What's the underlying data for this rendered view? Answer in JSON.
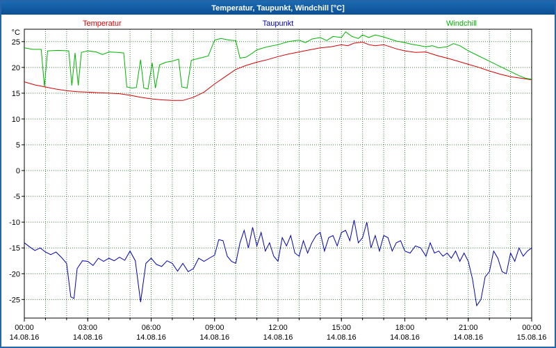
{
  "window": {
    "title": "Temperatur, Taupunkt, Windchill [°C]"
  },
  "chart_data": {
    "type": "line",
    "title": "Temperatur, Taupunkt, Windchill [°C]",
    "ylabel": "°C",
    "xlim": [
      0,
      24
    ],
    "ylim": [
      -28.6,
      27.4
    ],
    "y_ticks": [
      25,
      20,
      15,
      10,
      5,
      0,
      -5,
      -10,
      -15,
      -20,
      -25
    ],
    "x_ticks_hours": [
      0,
      3,
      6,
      9,
      12,
      15,
      18,
      21,
      24
    ],
    "x_tick_times": [
      "00:00",
      "03:00",
      "06:00",
      "09:00",
      "12:00",
      "15:00",
      "18:00",
      "21:00",
      "00:00"
    ],
    "x_tick_dates": [
      "14.08.16",
      "14.08.16",
      "14.08.16",
      "14.08.16",
      "14.08.16",
      "14.08.16",
      "14.08.16",
      "14.08.16",
      "15.08.16"
    ],
    "grid": {
      "on": true,
      "x_step_hours": 1,
      "y_step": 5,
      "color": "#3c7a3c"
    },
    "legend_position": "top",
    "series": [
      {
        "name": "Temperatur",
        "color": "#d40000",
        "points": [
          [
            0,
            17.2
          ],
          [
            0.5,
            16.6
          ],
          [
            1,
            16.2
          ],
          [
            1.5,
            15.8
          ],
          [
            2,
            15.5
          ],
          [
            2.5,
            15.3
          ],
          [
            3,
            15.2
          ],
          [
            3.5,
            15.1
          ],
          [
            4,
            15.0
          ],
          [
            4.5,
            14.9
          ],
          [
            5,
            14.6
          ],
          [
            5.5,
            14.2
          ],
          [
            6,
            13.9
          ],
          [
            6.5,
            13.7
          ],
          [
            7,
            13.6
          ],
          [
            7.5,
            13.6
          ],
          [
            8,
            14.2
          ],
          [
            8.5,
            15.2
          ],
          [
            9,
            16.8
          ],
          [
            9.5,
            18.2
          ],
          [
            10,
            19.6
          ],
          [
            10.5,
            20.4
          ],
          [
            11,
            21.0
          ],
          [
            11.5,
            21.5
          ],
          [
            12,
            22.1
          ],
          [
            12.5,
            22.6
          ],
          [
            13,
            23.0
          ],
          [
            13.5,
            23.4
          ],
          [
            14,
            23.8
          ],
          [
            14.5,
            24.0
          ],
          [
            15,
            24.4
          ],
          [
            15.3,
            24.2
          ],
          [
            15.6,
            24.7
          ],
          [
            16,
            24.9
          ],
          [
            16.3,
            24.4
          ],
          [
            16.6,
            24.2
          ],
          [
            17,
            24.4
          ],
          [
            17.3,
            24.0
          ],
          [
            17.6,
            23.6
          ],
          [
            18,
            23.2
          ],
          [
            18.5,
            22.9
          ],
          [
            19,
            23.0
          ],
          [
            19.3,
            22.6
          ],
          [
            19.6,
            22.2
          ],
          [
            20,
            21.8
          ],
          [
            20.5,
            21.2
          ],
          [
            21,
            20.6
          ],
          [
            21.5,
            20.0
          ],
          [
            22,
            19.3
          ],
          [
            22.5,
            18.7
          ],
          [
            23,
            18.2
          ],
          [
            23.5,
            17.9
          ],
          [
            24,
            17.6
          ]
        ]
      },
      {
        "name": "Taupunkt",
        "color": "#0000b8",
        "points": [
          [
            0,
            -14
          ],
          [
            0.25,
            -14.8
          ],
          [
            0.5,
            -15.5
          ],
          [
            0.75,
            -15
          ],
          [
            1,
            -15.8
          ],
          [
            1.25,
            -16.3
          ],
          [
            1.5,
            -15.8
          ],
          [
            1.75,
            -16.8
          ],
          [
            2,
            -18
          ],
          [
            2.2,
            -24.5
          ],
          [
            2.35,
            -24.8
          ],
          [
            2.5,
            -19
          ],
          [
            2.75,
            -17.5
          ],
          [
            3,
            -17.6
          ],
          [
            3.25,
            -18.4
          ],
          [
            3.5,
            -17
          ],
          [
            3.75,
            -17.6
          ],
          [
            4,
            -17
          ],
          [
            4.25,
            -17.5
          ],
          [
            4.5,
            -16.8
          ],
          [
            4.75,
            -17.4
          ],
          [
            5,
            -15.6
          ],
          [
            5.25,
            -17.5
          ],
          [
            5.5,
            -25.5
          ],
          [
            5.75,
            -18
          ],
          [
            6,
            -17
          ],
          [
            6.25,
            -18.2
          ],
          [
            6.5,
            -18.6
          ],
          [
            6.75,
            -17.5
          ],
          [
            7,
            -18
          ],
          [
            7.25,
            -19.5
          ],
          [
            7.5,
            -18
          ],
          [
            7.75,
            -19.6
          ],
          [
            8,
            -19
          ],
          [
            8.25,
            -17
          ],
          [
            8.5,
            -17.6
          ],
          [
            8.75,
            -17
          ],
          [
            9,
            -16.4
          ],
          [
            9.2,
            -13.4
          ],
          [
            9.4,
            -13.6
          ],
          [
            9.6,
            -16.6
          ],
          [
            9.8,
            -17.6
          ],
          [
            10,
            -18
          ],
          [
            10.2,
            -14
          ],
          [
            10.4,
            -11.6
          ],
          [
            10.6,
            -15
          ],
          [
            10.8,
            -11
          ],
          [
            11,
            -14.6
          ],
          [
            11.2,
            -12
          ],
          [
            11.4,
            -15.6
          ],
          [
            11.6,
            -14
          ],
          [
            11.8,
            -16.6
          ],
          [
            12,
            -17.6
          ],
          [
            12.2,
            -13
          ],
          [
            12.4,
            -14.6
          ],
          [
            12.6,
            -12.6
          ],
          [
            12.8,
            -16
          ],
          [
            13,
            -16.6
          ],
          [
            13.2,
            -13.6
          ],
          [
            13.4,
            -16
          ],
          [
            13.6,
            -14
          ],
          [
            13.8,
            -12.6
          ],
          [
            14,
            -12
          ],
          [
            14.2,
            -15.6
          ],
          [
            14.4,
            -13
          ],
          [
            14.6,
            -12.6
          ],
          [
            14.8,
            -14.6
          ],
          [
            15,
            -12
          ],
          [
            15.2,
            -11.6
          ],
          [
            15.4,
            -13.6
          ],
          [
            15.6,
            -9.6
          ],
          [
            15.8,
            -14
          ],
          [
            16,
            -13
          ],
          [
            16.2,
            -10
          ],
          [
            16.4,
            -15
          ],
          [
            16.6,
            -12.6
          ],
          [
            16.8,
            -15.6
          ],
          [
            17,
            -12.6
          ],
          [
            17.2,
            -13
          ],
          [
            17.4,
            -15.6
          ],
          [
            17.6,
            -14
          ],
          [
            17.8,
            -13.6
          ],
          [
            18,
            -15.6
          ],
          [
            18.25,
            -16
          ],
          [
            18.5,
            -14.6
          ],
          [
            18.75,
            -15
          ],
          [
            19,
            -16.6
          ],
          [
            19.2,
            -14
          ],
          [
            19.4,
            -16
          ],
          [
            19.6,
            -15.6
          ],
          [
            19.8,
            -16.6
          ],
          [
            20,
            -16
          ],
          [
            20.2,
            -17
          ],
          [
            20.4,
            -15.6
          ],
          [
            20.6,
            -17.6
          ],
          [
            20.8,
            -16
          ],
          [
            21,
            -17.6
          ],
          [
            21.2,
            -21
          ],
          [
            21.4,
            -26.2
          ],
          [
            21.6,
            -25
          ],
          [
            21.8,
            -20.6
          ],
          [
            22,
            -19.6
          ],
          [
            22.2,
            -15.6
          ],
          [
            22.4,
            -17
          ],
          [
            22.6,
            -19.6
          ],
          [
            22.8,
            -20
          ],
          [
            23,
            -16
          ],
          [
            23.2,
            -17.6
          ],
          [
            23.4,
            -15
          ],
          [
            23.6,
            -16.6
          ],
          [
            23.8,
            -15.6
          ],
          [
            24,
            -15
          ]
        ]
      },
      {
        "name": "Windchill",
        "color": "#00b400",
        "points": [
          [
            0,
            23.8
          ],
          [
            0.4,
            23.5
          ],
          [
            0.8,
            23.5
          ],
          [
            0.95,
            16.3
          ],
          [
            1.1,
            23.2
          ],
          [
            1.6,
            23.3
          ],
          [
            2.1,
            23.2
          ],
          [
            2.25,
            16.5
          ],
          [
            2.4,
            22.8
          ],
          [
            2.55,
            16.5
          ],
          [
            2.7,
            22.9
          ],
          [
            3,
            23.2
          ],
          [
            3.4,
            23.0
          ],
          [
            3.7,
            22.5
          ],
          [
            4,
            23.0
          ],
          [
            4.4,
            22.9
          ],
          [
            4.7,
            22.8
          ],
          [
            4.85,
            16.2
          ],
          [
            5.1,
            16.0
          ],
          [
            5.3,
            16.1
          ],
          [
            5.5,
            21.5
          ],
          [
            5.65,
            16.0
          ],
          [
            5.85,
            15.8
          ],
          [
            6.05,
            20.9
          ],
          [
            6.2,
            16.0
          ],
          [
            6.4,
            20.5
          ],
          [
            6.7,
            21.0
          ],
          [
            7,
            21.2
          ],
          [
            7.3,
            21.6
          ],
          [
            7.45,
            16.2
          ],
          [
            7.7,
            16.0
          ],
          [
            7.9,
            21.4
          ],
          [
            8.3,
            21.8
          ],
          [
            8.7,
            22.2
          ],
          [
            9,
            25.3
          ],
          [
            9.3,
            25.6
          ],
          [
            9.7,
            25.3
          ],
          [
            10,
            25.2
          ],
          [
            10.2,
            21.8
          ],
          [
            10.5,
            22.0
          ],
          [
            10.8,
            22.8
          ],
          [
            11,
            23.4
          ],
          [
            11.5,
            24.0
          ],
          [
            12,
            24.4
          ],
          [
            12.5,
            25.0
          ],
          [
            13,
            25.3
          ],
          [
            13.3,
            24.8
          ],
          [
            13.6,
            25.5
          ],
          [
            14,
            25.8
          ],
          [
            14.3,
            25.2
          ],
          [
            14.6,
            26.0
          ],
          [
            15,
            25.8
          ],
          [
            15.2,
            26.9
          ],
          [
            15.5,
            26.0
          ],
          [
            15.8,
            25.6
          ],
          [
            16,
            26.3
          ],
          [
            16.3,
            25.8
          ],
          [
            16.6,
            26.3
          ],
          [
            17,
            25.9
          ],
          [
            17.3,
            25.5
          ],
          [
            17.6,
            25.1
          ],
          [
            18,
            24.8
          ],
          [
            18.3,
            24.5
          ],
          [
            18.6,
            24.3
          ],
          [
            19,
            24.0
          ],
          [
            19.3,
            24.2
          ],
          [
            19.6,
            23.8
          ],
          [
            20,
            24.0
          ],
          [
            20.3,
            24.6
          ],
          [
            20.6,
            24.2
          ],
          [
            21,
            23.2
          ],
          [
            21.5,
            22.2
          ],
          [
            22,
            21.2
          ],
          [
            22.5,
            20.2
          ],
          [
            23,
            19.2
          ],
          [
            23.4,
            18.4
          ],
          [
            23.7,
            17.9
          ],
          [
            24,
            17.7
          ]
        ]
      }
    ]
  }
}
